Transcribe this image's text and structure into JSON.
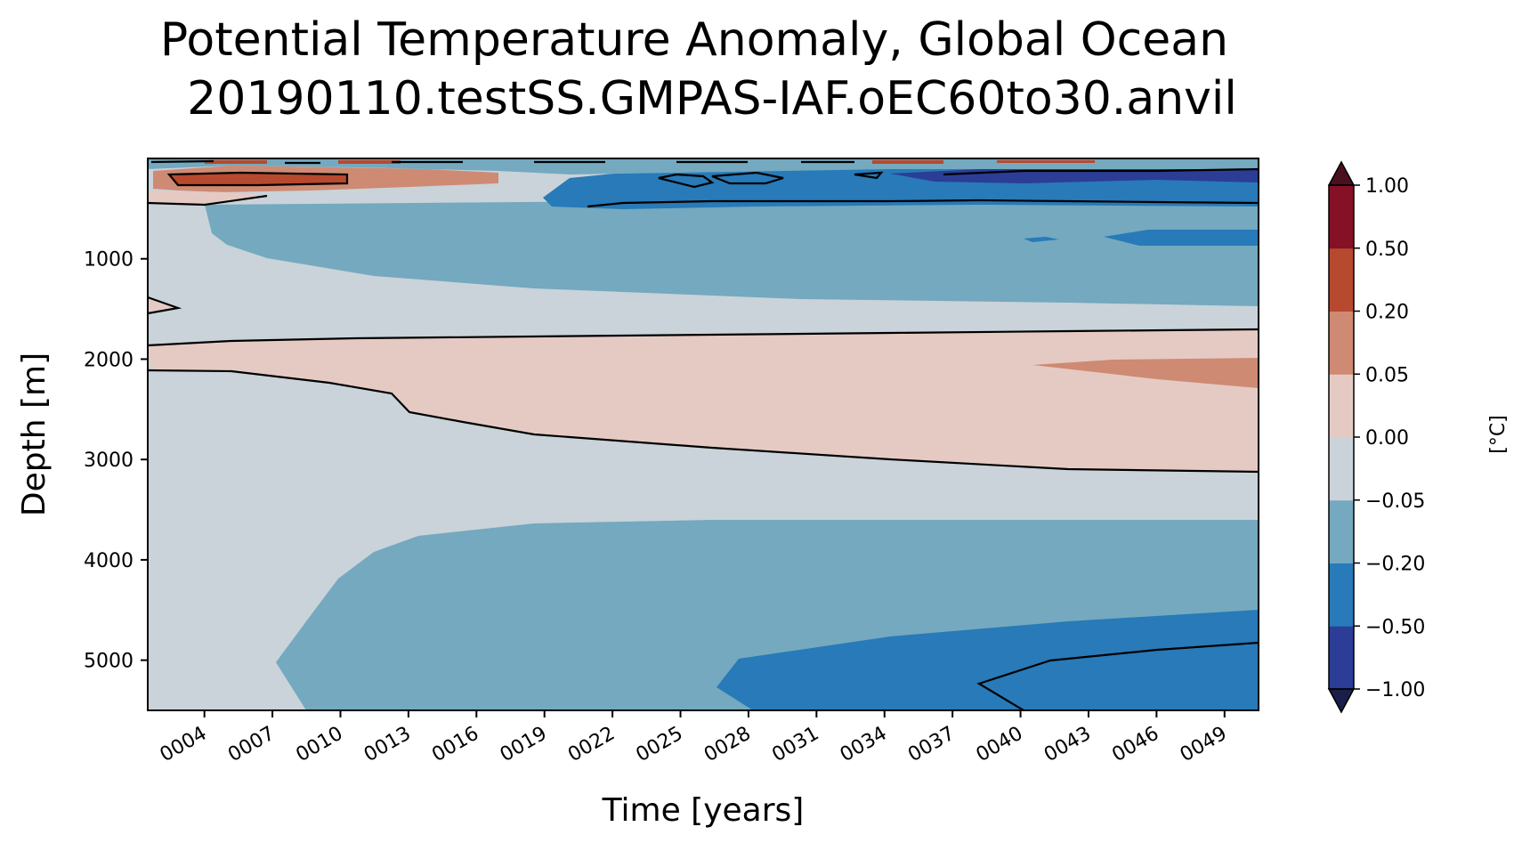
{
  "chart_data": {
    "type": "heatmap",
    "title": "Potential Temperature Anomaly, Global Ocean",
    "subtitle": "20190110.testSS.GMPAS-IAF.oEC60to30.anvil",
    "xlabel": "Time [years]",
    "ylabel": "Depth [m]",
    "xlim": [
      1.5,
      50.5
    ],
    "ylim": [
      5500,
      0
    ],
    "x_ticks": [
      {
        "value": 4,
        "label": "0004"
      },
      {
        "value": 7,
        "label": "0007"
      },
      {
        "value": 10,
        "label": "0010"
      },
      {
        "value": 13,
        "label": "0013"
      },
      {
        "value": 16,
        "label": "0016"
      },
      {
        "value": 19,
        "label": "0019"
      },
      {
        "value": 22,
        "label": "0022"
      },
      {
        "value": 25,
        "label": "0025"
      },
      {
        "value": 28,
        "label": "0028"
      },
      {
        "value": 31,
        "label": "0031"
      },
      {
        "value": 34,
        "label": "0034"
      },
      {
        "value": 37,
        "label": "0037"
      },
      {
        "value": 40,
        "label": "0040"
      },
      {
        "value": 43,
        "label": "0043"
      },
      {
        "value": 46,
        "label": "0046"
      },
      {
        "value": 49,
        "label": "0049"
      }
    ],
    "y_ticks": [
      {
        "value": 1000,
        "label": "1000"
      },
      {
        "value": 2000,
        "label": "2000"
      },
      {
        "value": 3000,
        "label": "3000"
      },
      {
        "value": 4000,
        "label": "4000"
      },
      {
        "value": 5000,
        "label": "5000"
      }
    ],
    "colorbar": {
      "label": "[°C]",
      "levels": [
        {
          "value": -1.0,
          "label": "−1.00"
        },
        {
          "value": -0.5,
          "label": "−0.50"
        },
        {
          "value": -0.2,
          "label": "−0.20"
        },
        {
          "value": -0.05,
          "label": "−0.05"
        },
        {
          "value": 0.0,
          "label": "0.00"
        },
        {
          "value": 0.05,
          "label": "0.05"
        },
        {
          "value": 0.2,
          "label": "0.20"
        },
        {
          "value": 0.5,
          "label": "0.50"
        },
        {
          "value": 1.0,
          "label": "1.00"
        }
      ],
      "colors": [
        "#2b3d97",
        "#287ab8",
        "#74a9bf",
        "#c9d3d9",
        "#e5cac4",
        "#cf8a73",
        "#b7492e",
        "#861026"
      ],
      "under_color": "#1b1e4a",
      "over_color": "#4a1020"
    },
    "regions": [
      {
        "band": "0.00 to 0.05",
        "x": [
          2,
          50
        ],
        "depth": [
          1750,
          3150
        ],
        "note": "deepens from ~2100 m at year 2 to ~3150 m by year 50"
      },
      {
        "band": "0.05 to 0.20",
        "x": [
          41,
          50
        ],
        "depth": [
          2050,
          2300
        ]
      },
      {
        "band": "-0.20 to -0.05",
        "x": [
          7,
          50
        ],
        "depth": [
          3600,
          5500
        ]
      },
      {
        "band": "-0.50 to -0.20",
        "x": [
          27,
          50
        ],
        "depth": [
          4500,
          5500
        ]
      },
      {
        "band": "-0.20 to -0.05",
        "x": [
          5,
          50
        ],
        "depth": [
          300,
          1450
        ]
      },
      {
        "band": "-0.50 to -0.20",
        "x": [
          19,
          50
        ],
        "depth": [
          100,
          450
        ]
      },
      {
        "band": "-1.00 to -0.50",
        "x": [
          37,
          50
        ],
        "depth": [
          100,
          250
        ]
      },
      {
        "band": "0.20 to 0.50",
        "x": [
          2,
          11
        ],
        "depth": [
          100,
          300
        ]
      }
    ]
  }
}
